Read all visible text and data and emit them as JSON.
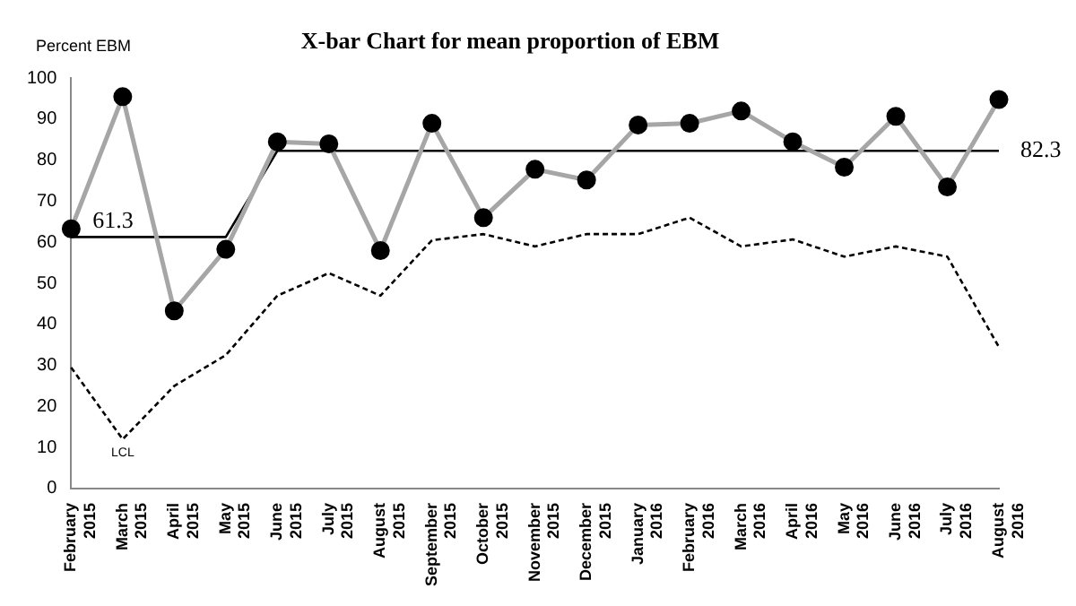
{
  "chart_data": {
    "type": "line",
    "title": "X-bar Chart for mean proportion of EBM",
    "ylabel": "Percent EBM",
    "categories": [
      "February 2015",
      "March 2015",
      "April 2015",
      "May 2015",
      "June 2015",
      "July 2015",
      "August 2015",
      "September 2015",
      "October 2015",
      "November 2015",
      "December 2015",
      "January 2016",
      "February 2016",
      "March 2016",
      "April 2016",
      "May 2016",
      "June 2016",
      "July 2016",
      "August 2016"
    ],
    "series": [
      {
        "color": "#a6a6a6",
        "marker": "circle",
        "line_style": "solid",
        "values": [
          63.3,
          95.5,
          43.3,
          58.3,
          84.5,
          84,
          58,
          89,
          66,
          77.8,
          75.2,
          88.6,
          89,
          92,
          84.5,
          78.3,
          90.7,
          73.5,
          94.8
        ]
      },
      {
        "color": "#000000",
        "marker": "none",
        "line_style": "solid",
        "values": [
          61.3,
          61.3,
          61.3,
          61.3,
          82.3,
          82.3,
          82.3,
          82.3,
          82.3,
          82.3,
          82.3,
          82.3,
          82.3,
          82.3,
          82.3,
          82.3,
          82.3,
          82.3,
          82.3
        ],
        "value_labels": [
          "61.3",
          null,
          null,
          null,
          null,
          null,
          null,
          null,
          null,
          null,
          null,
          null,
          null,
          null,
          null,
          null,
          null,
          null,
          "82.3"
        ]
      },
      {
        "color": "#000000",
        "marker": "none",
        "line_style": "dashed",
        "values": [
          29.5,
          12,
          25,
          32.5,
          47,
          52.5,
          47,
          60.5,
          62,
          59,
          62,
          62,
          66,
          59,
          60.7,
          56.5,
          59,
          56.5,
          34.5
        ]
      }
    ],
    "annotations": [
      {
        "text": "LCL",
        "x": "March 2015",
        "y": 12
      }
    ],
    "ylim": [
      0,
      100
    ],
    "yticks": [
      0,
      10,
      20,
      30,
      40,
      50,
      60,
      70,
      80,
      90,
      100
    ],
    "grid": false,
    "legend": false
  }
}
